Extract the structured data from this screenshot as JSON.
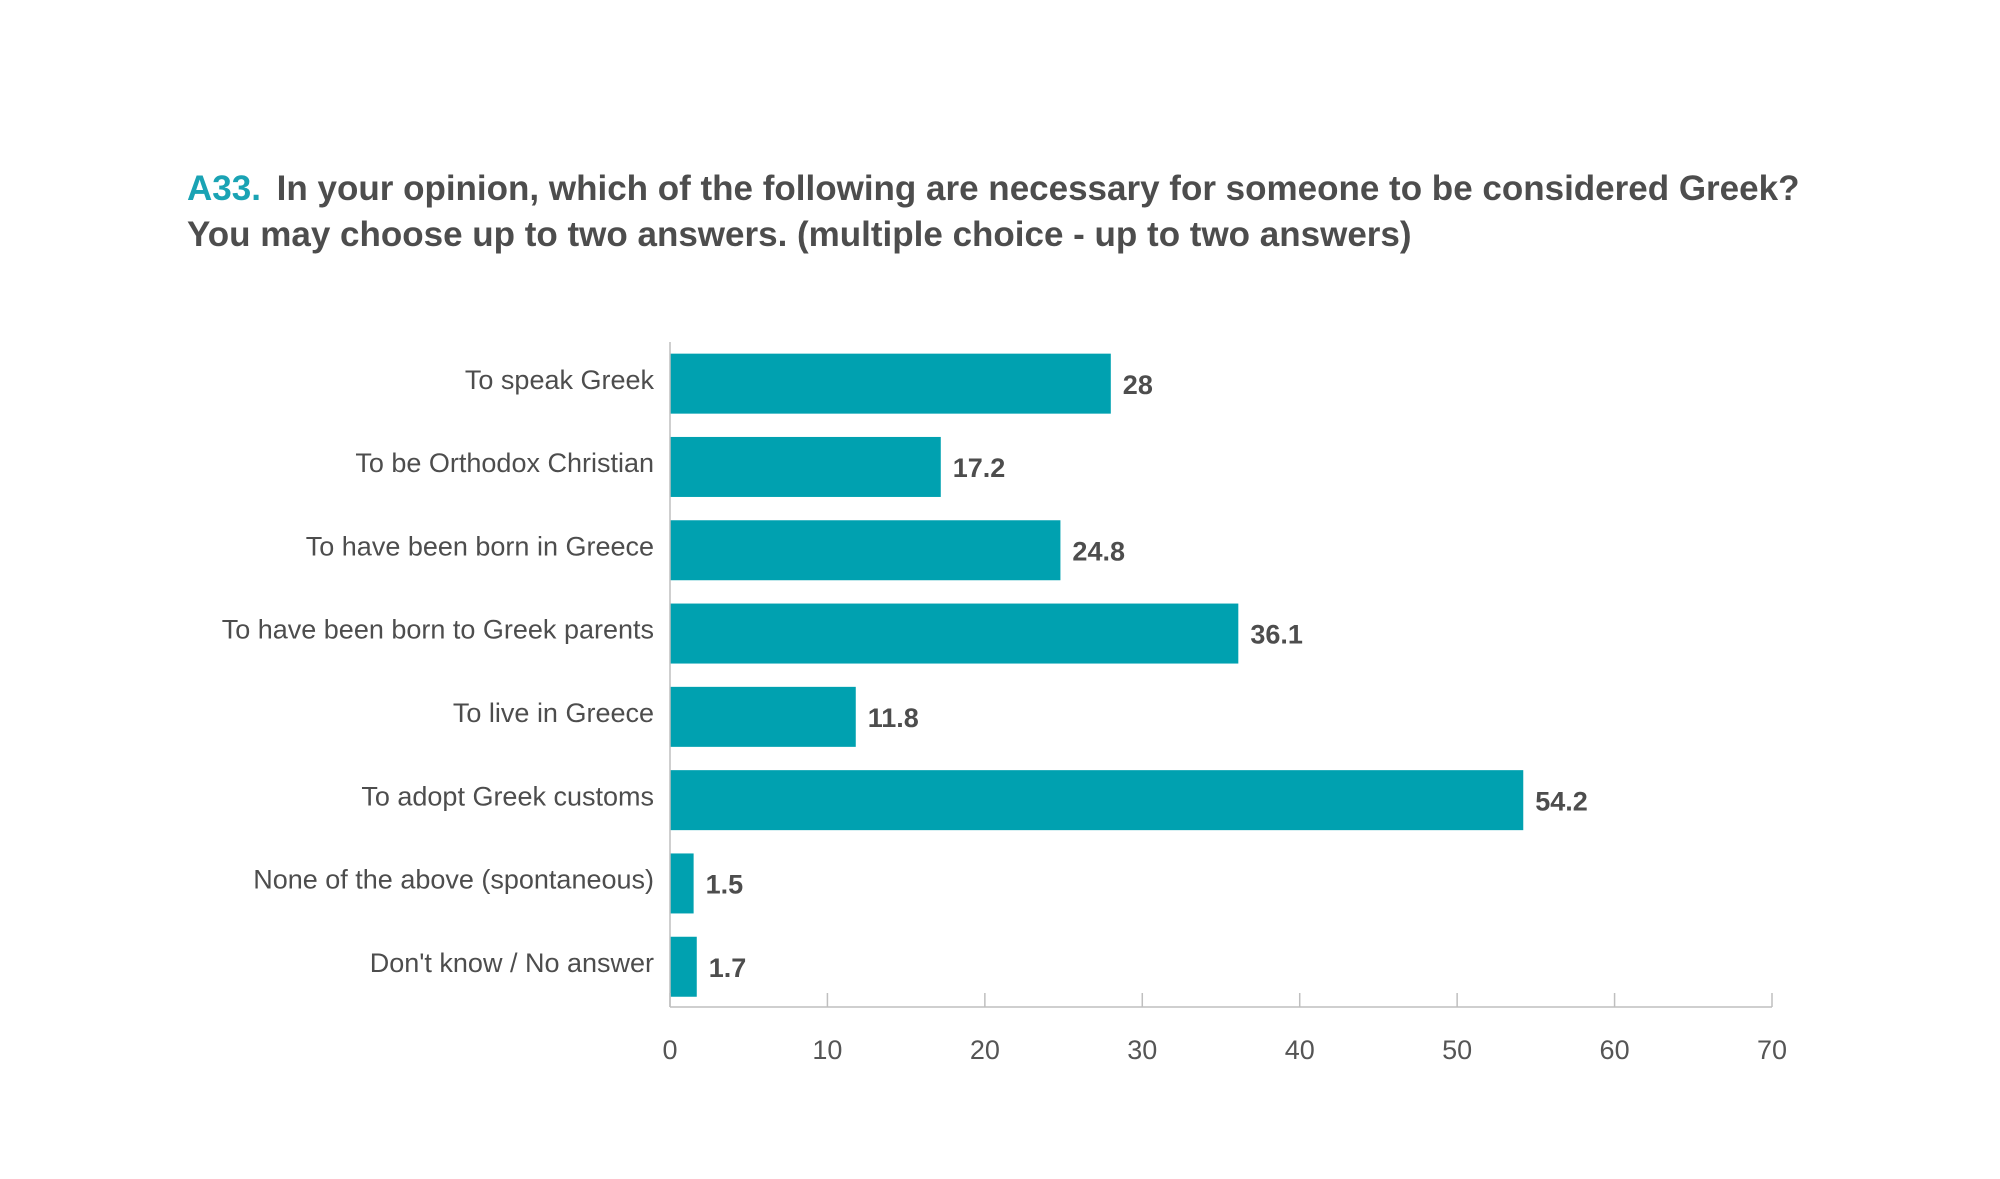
{
  "question": {
    "id": "A33.",
    "text": "In your opinion, which of the following are necessary for someone to be considered Greek? You may choose up to two answers. (multiple choice - up to two answers)"
  },
  "colors": {
    "bar": "#00a1b0",
    "question_id": "#1aa3b4",
    "text": "#4d4d4d",
    "axis": "#bfbfbf"
  },
  "chart_data": {
    "type": "bar",
    "orientation": "horizontal",
    "categories": [
      "To speak Greek",
      "To be Orthodox Christian",
      "To have been born in Greece",
      "To have been born to Greek parents",
      "To live in Greece",
      "To adopt Greek customs",
      "None of the above (spontaneous)",
      "Don't know / No answer"
    ],
    "values": [
      28,
      17.2,
      24.8,
      36.1,
      11.8,
      54.2,
      1.5,
      1.7
    ],
    "value_labels": [
      "28",
      "17.2",
      "24.8",
      "36.1",
      "11.8",
      "54.2",
      "1.5",
      "1.7"
    ],
    "xlim": [
      0,
      70
    ],
    "xticks": [
      "0",
      "10",
      "20",
      "30",
      "40",
      "50",
      "60",
      "70"
    ],
    "grid": false,
    "legend": "none"
  }
}
